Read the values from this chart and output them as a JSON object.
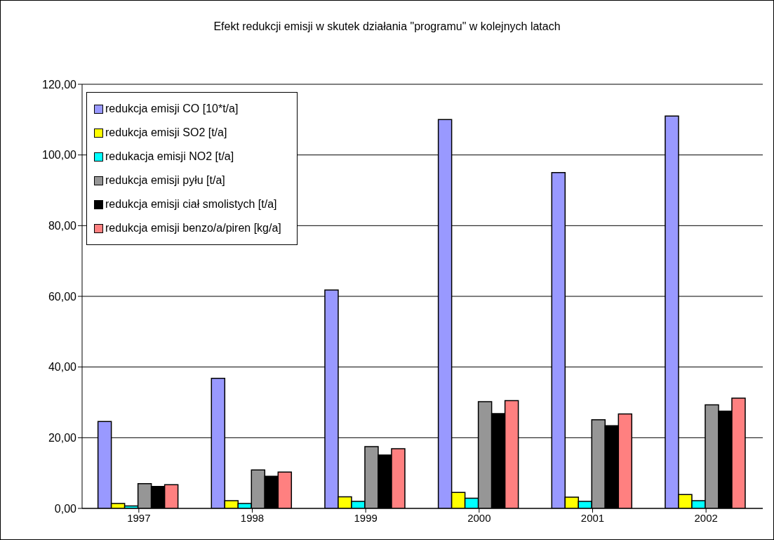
{
  "chart_data": {
    "type": "bar",
    "title": "Efekt redukcji emisji w skutek działania \"programu\" w kolejnych latach",
    "categories": [
      "1997",
      "1998",
      "1999",
      "2000",
      "2001",
      "2002"
    ],
    "series": [
      {
        "name": "redukcja emisji CO [10*t/a]",
        "color": "#9999ff",
        "values": [
          24.6,
          36.8,
          61.8,
          110,
          95,
          111
        ]
      },
      {
        "name": "redukcja emisji SO2 [t/a]",
        "color": "#ffff00",
        "values": [
          1.4,
          2.2,
          3.3,
          4.5,
          3.2,
          3.9
        ]
      },
      {
        "name": "redukacja emisji NO2 [t/a]",
        "color": "#00ffff",
        "values": [
          0.7,
          1.4,
          2.0,
          2.9,
          2.0,
          2.2
        ]
      },
      {
        "name": "redukcja emisji pyłu [t/a]",
        "color": "#969696",
        "values": [
          7.0,
          10.9,
          17.5,
          30.2,
          25.1,
          29.3
        ]
      },
      {
        "name": "redukcja emisji ciał smolistych [t/a]",
        "color": "#000000",
        "values": [
          6.2,
          9.1,
          15.1,
          26.8,
          23.4,
          27.5
        ]
      },
      {
        "name": "redukcja emisji benzo/a/piren [kg/a]",
        "color": "#ff8080",
        "values": [
          6.7,
          10.3,
          16.9,
          30.5,
          26.7,
          31.2
        ]
      }
    ],
    "ylim": [
      0,
      120
    ],
    "yticks": [
      {
        "value": 0,
        "label": "0,00"
      },
      {
        "value": 20,
        "label": "20,00"
      },
      {
        "value": 40,
        "label": "40,00"
      },
      {
        "value": 60,
        "label": "60,00"
      },
      {
        "value": 80,
        "label": "80,00"
      },
      {
        "value": 100,
        "label": "100,00"
      },
      {
        "value": 120,
        "label": "120,00"
      }
    ],
    "grid": "y",
    "legend": "top left"
  }
}
